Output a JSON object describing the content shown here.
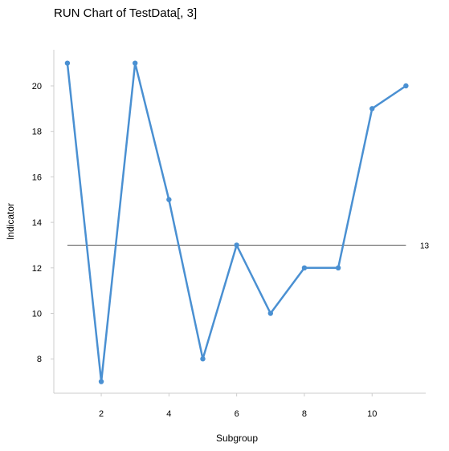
{
  "chart_data": {
    "type": "line",
    "title": "RUN Chart of TestData[, 3]",
    "xlabel": "Subgroup",
    "ylabel": "Indicator",
    "x": [
      1,
      2,
      3,
      4,
      5,
      6,
      7,
      8,
      9,
      10,
      11
    ],
    "values": [
      21,
      7,
      21,
      15,
      8,
      13,
      10,
      12,
      12,
      19,
      20
    ],
    "reference_line": {
      "value": 13,
      "label": "13"
    },
    "x_ticks": [
      2,
      4,
      6,
      8,
      10
    ],
    "y_ticks": [
      8,
      10,
      12,
      14,
      16,
      18,
      20
    ],
    "xlim": [
      0.5,
      11.5
    ],
    "ylim": [
      6.5,
      22
    ],
    "grid": false,
    "series_color": "#4a90d2",
    "reference_color": "#555555",
    "axis_color": "#cccccc"
  }
}
